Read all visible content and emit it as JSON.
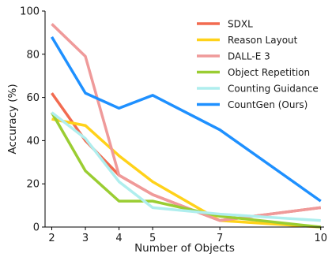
{
  "chart_data": {
    "type": "line",
    "title": "",
    "xlabel": "Number of Objects",
    "ylabel": "Accuracy (%)",
    "x": [
      2,
      3,
      4,
      5,
      7,
      10
    ],
    "xlim": [
      1.8,
      10.1
    ],
    "ylim": [
      0,
      100
    ],
    "yticks": [
      0,
      20,
      40,
      60,
      80,
      100
    ],
    "grid": false,
    "legend_position": "top-right",
    "series": [
      {
        "name": "SDXL",
        "color": "#f26b50",
        "values": [
          62,
          40,
          24,
          15,
          3,
          9
        ]
      },
      {
        "name": "Reason Layout",
        "color": "#ffd21a",
        "values": [
          50,
          47,
          33,
          21,
          3,
          0
        ]
      },
      {
        "name": "DALL-E 3",
        "color": "#ef9a9a",
        "values": [
          94,
          79,
          24,
          15,
          3,
          9
        ]
      },
      {
        "name": "Object Repetition",
        "color": "#9acd32",
        "values": [
          53,
          26,
          12,
          12,
          5,
          0
        ]
      },
      {
        "name": "Counting Guidance",
        "color": "#afeeee",
        "values": [
          53,
          41,
          21,
          9,
          6,
          3
        ]
      },
      {
        "name": "CountGen (Ours)",
        "color": "#1e90ff",
        "values": [
          88,
          62,
          55,
          61,
          45,
          12
        ]
      }
    ]
  }
}
